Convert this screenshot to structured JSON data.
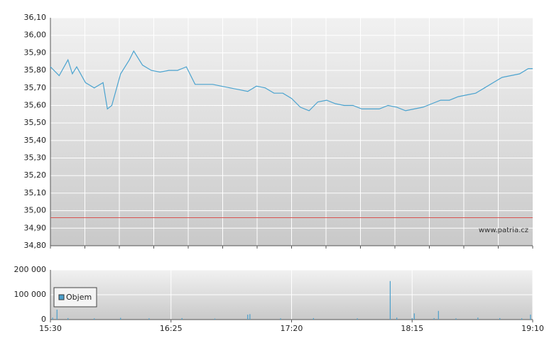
{
  "chart_data": [
    {
      "type": "line",
      "x": [
        "15:30",
        "15:34",
        "15:38",
        "15:40",
        "15:42",
        "15:46",
        "15:50",
        "15:54",
        "15:56",
        "15:58",
        "16:02",
        "16:06",
        "16:08",
        "16:12",
        "16:16",
        "16:20",
        "16:24",
        "16:28",
        "16:32",
        "16:36",
        "16:40",
        "16:44",
        "16:48",
        "16:52",
        "16:56",
        "17:00",
        "17:04",
        "17:08",
        "17:12",
        "17:16",
        "17:20",
        "17:24",
        "17:28",
        "17:32",
        "17:36",
        "17:40",
        "17:44",
        "17:48",
        "17:52",
        "17:56",
        "18:00",
        "18:04",
        "18:08",
        "18:12",
        "18:16",
        "18:20",
        "18:24",
        "18:28",
        "18:32",
        "18:36",
        "18:40",
        "18:44",
        "18:48",
        "18:52",
        "18:56",
        "19:00",
        "19:04",
        "19:08",
        "19:10"
      ],
      "values": [
        35.82,
        35.77,
        35.86,
        35.78,
        35.82,
        35.73,
        35.7,
        35.73,
        35.58,
        35.6,
        35.78,
        35.86,
        35.91,
        35.83,
        35.8,
        35.79,
        35.8,
        35.8,
        35.82,
        35.72,
        35.72,
        35.72,
        35.71,
        35.7,
        35.69,
        35.68,
        35.71,
        35.7,
        35.67,
        35.67,
        35.64,
        35.59,
        35.57,
        35.62,
        35.63,
        35.61,
        35.6,
        35.6,
        35.58,
        35.58,
        35.58,
        35.6,
        35.59,
        35.57,
        35.58,
        35.59,
        35.61,
        35.63,
        35.63,
        35.65,
        35.66,
        35.67,
        35.7,
        35.73,
        35.76,
        35.77,
        35.78,
        35.81,
        35.81
      ],
      "color": "#4ba3cf",
      "reference_line": {
        "value": 34.96,
        "color": "#d9534f"
      },
      "xlim": [
        "15:30",
        "19:10"
      ],
      "ylim": [
        34.8,
        36.1
      ],
      "yticks": [
        {
          "value": 34.8,
          "label": "34,80"
        },
        {
          "value": 34.9,
          "label": "34,90"
        },
        {
          "value": 35.0,
          "label": "35,00"
        },
        {
          "value": 35.1,
          "label": "35,10"
        },
        {
          "value": 35.2,
          "label": "35,20"
        },
        {
          "value": 35.3,
          "label": "35,30"
        },
        {
          "value": 35.4,
          "label": "35,40"
        },
        {
          "value": 35.5,
          "label": "35,50"
        },
        {
          "value": 35.6,
          "label": "35,60"
        },
        {
          "value": 35.7,
          "label": "35,70"
        },
        {
          "value": 35.8,
          "label": "35,80"
        },
        {
          "value": 35.9,
          "label": "35,90"
        },
        {
          "value": 36.0,
          "label": "36,00"
        },
        {
          "value": 36.1,
          "label": "36,10"
        }
      ],
      "grid": true,
      "watermark": "www.patria.cz"
    },
    {
      "type": "bar",
      "x": [
        "15:31",
        "15:33",
        "15:38",
        "15:50",
        "16:02",
        "16:15",
        "16:30",
        "16:45",
        "17:00",
        "17:01",
        "17:15",
        "17:30",
        "17:50",
        "18:05",
        "18:08",
        "18:15",
        "18:16",
        "18:25",
        "18:27",
        "18:35",
        "18:45",
        "18:55",
        "19:05",
        "19:09"
      ],
      "series": [
        {
          "name": "Objem",
          "color": "#4b9fcb",
          "values": [
            8000,
            40000,
            6000,
            5000,
            7000,
            5000,
            6000,
            4000,
            20000,
            22000,
            5000,
            6000,
            5000,
            155000,
            8000,
            6000,
            25000,
            6000,
            35000,
            5000,
            8000,
            6000,
            5000,
            20000
          ]
        }
      ],
      "xlim": [
        "15:30",
        "19:10"
      ],
      "ylim": [
        0,
        200000
      ],
      "yticks": [
        0,
        {
          "value": 100000,
          "label": "100 000"
        },
        {
          "value": 200000,
          "label": "200 000"
        }
      ],
      "xticks": [
        "15:30",
        "16:25",
        "17:20",
        "18:15",
        "19:10"
      ],
      "grid": true,
      "legend": "upper left"
    }
  ]
}
